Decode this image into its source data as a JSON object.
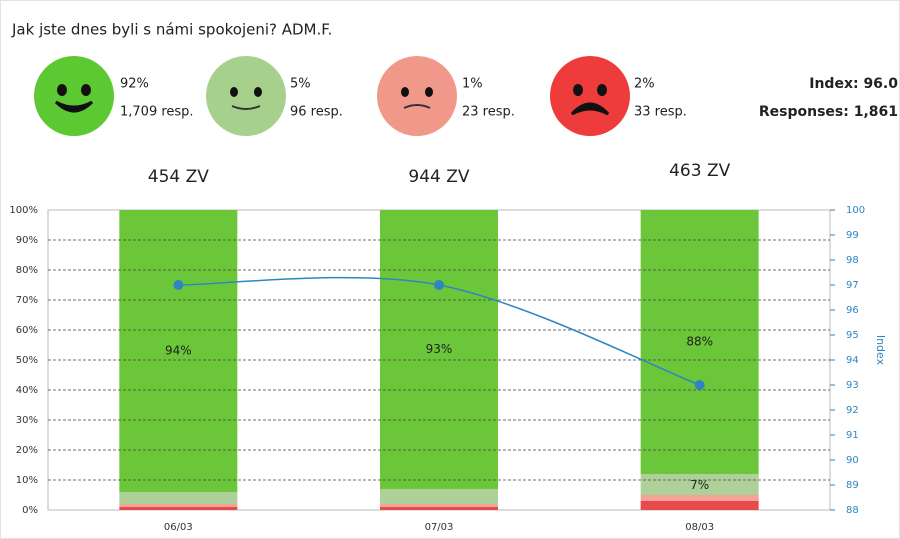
{
  "header": {
    "title": "Jak jste dnes byli s námi spokojeni? ADM.F.",
    "faces": [
      {
        "percent": "92%",
        "responses": "1,709 resp."
      },
      {
        "percent": "5%",
        "responses": "96 resp."
      },
      {
        "percent": "1%",
        "responses": "23 resp."
      },
      {
        "percent": "2%",
        "responses": "33 resp."
      }
    ],
    "index": "Index: 96.0",
    "total": "Responses: 1,861"
  },
  "chart_data": {
    "type": "stacked-bar",
    "categories": [
      "06/03",
      "07/03",
      "08/03"
    ],
    "annotations": [
      "454 ZV",
      "944 ZV",
      "463 ZV"
    ],
    "series": [
      {
        "name": "very unsatisfied",
        "color": "#e84a4a",
        "values": [
          1,
          1,
          3
        ]
      },
      {
        "name": "unsatisfied",
        "color": "#f4a39a",
        "values": [
          1,
          1,
          2
        ]
      },
      {
        "name": "satisfied",
        "color": "#aed19a",
        "values": [
          4,
          5,
          7
        ],
        "value_labels": [
          null,
          null,
          "7%"
        ]
      },
      {
        "name": "very satisfied",
        "color": "#6cc63a",
        "values": [
          94,
          93,
          88
        ],
        "value_labels": [
          "94%",
          "93%",
          "88%"
        ]
      }
    ],
    "line": {
      "color": "#2e86c1",
      "axis": "y2",
      "values": [
        97,
        97,
        93
      ]
    },
    "ylim": [
      0,
      100
    ],
    "yticks": [
      {
        "value": 0,
        "label": "0%"
      },
      {
        "value": 10,
        "label": "10%"
      },
      {
        "value": 20,
        "label": "20%"
      },
      {
        "value": 30,
        "label": "30%"
      },
      {
        "value": 40,
        "label": "40%"
      },
      {
        "value": 50,
        "label": "50%"
      },
      {
        "value": 60,
        "label": "60%"
      },
      {
        "value": 70,
        "label": "70%"
      },
      {
        "value": 80,
        "label": "80%"
      },
      {
        "value": 90,
        "label": "90%"
      },
      {
        "value": 100,
        "label": "100%"
      }
    ],
    "y2label": "Index",
    "y2lim": [
      88,
      100
    ],
    "y2ticks": [
      88,
      89,
      90,
      91,
      92,
      93,
      94,
      95,
      96,
      97,
      98,
      99,
      100
    ],
    "grid": true
  }
}
